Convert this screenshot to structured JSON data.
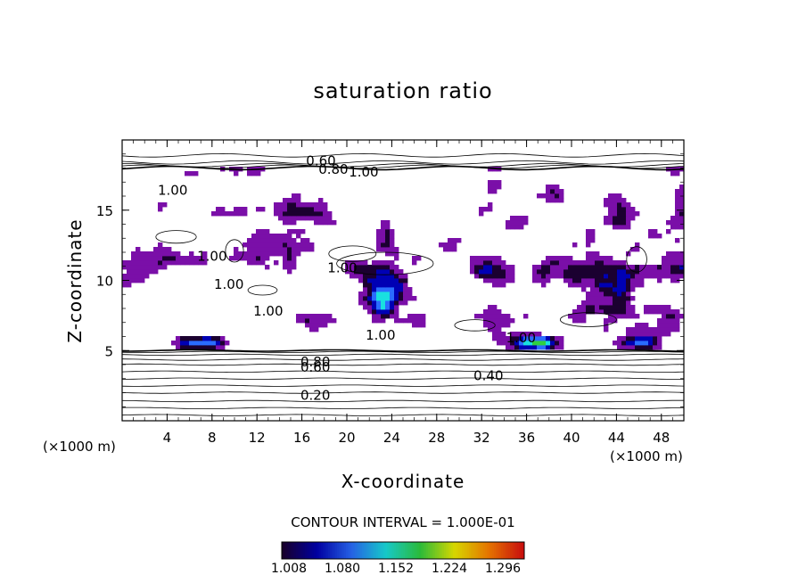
{
  "chart_data": {
    "type": "heatmap",
    "title": "saturation ratio",
    "xlabel": "X-coordinate",
    "ylabel": "Z-coordinate",
    "x_unit": "(×1000 m)",
    "y_unit": "(×1000 m)",
    "xlim": [
      0,
      50
    ],
    "ylim": [
      0,
      20
    ],
    "x_ticks": [
      "4",
      "8",
      "12",
      "16",
      "20",
      "24",
      "28",
      "32",
      "36",
      "40",
      "44",
      "48"
    ],
    "y_ticks": [
      "5",
      "10",
      "15"
    ],
    "contour_labels": [
      "0.60",
      "0.80",
      "1.00",
      "1.00",
      "1.00",
      "1.00",
      "1.00",
      "1.00",
      "1.00",
      "1.00",
      "0.80",
      "0.60",
      "0.40",
      "0.20"
    ],
    "contour_interval_text": "CONTOUR INTERVAL = 1.000E-01",
    "colorbar": {
      "ticks": [
        "1.008",
        "1.080",
        "1.152",
        "1.224",
        "1.296"
      ],
      "colors": [
        "#1b0030",
        "#0000b4",
        "#2a6cff",
        "#19e0e0",
        "#30d040",
        "#f0f000",
        "#ff8000",
        "#e01010"
      ]
    },
    "below_saturation_color": "#7a0fa8"
  }
}
